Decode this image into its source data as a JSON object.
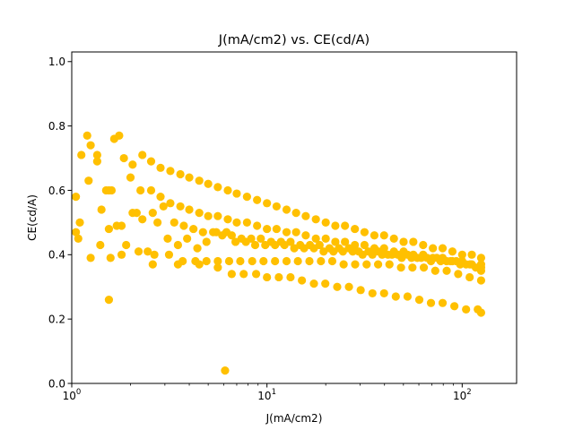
{
  "chart_data": {
    "type": "scatter",
    "title": "J(mA/cm2) vs. CE(cd/A)",
    "xlabel": "J(mA/cm2)",
    "ylabel": "CE(cd/A)",
    "xscale": "log",
    "xlim": [
      1,
      190
    ],
    "ylim": [
      0.0,
      1.03
    ],
    "x_ticks": [
      {
        "value": 1,
        "label": "10",
        "sup": "0"
      },
      {
        "value": 10,
        "label": "10",
        "sup": "1"
      },
      {
        "value": 100,
        "label": "10",
        "sup": "2"
      }
    ],
    "y_ticks": [
      "0.0",
      "0.2",
      "0.4",
      "0.6",
      "0.8",
      "1.0"
    ],
    "grid": false,
    "legend": "none",
    "marker_color": "#FFC000",
    "series": [
      {
        "x": [
          1.05,
          1.08,
          1.12,
          1.22,
          1.35,
          1.5,
          1.65,
          1.85,
          2.05,
          2.3,
          2.55,
          2.85,
          3.2,
          3.6,
          4.0,
          4.5,
          5.0,
          5.6,
          6.3,
          7.0,
          7.9,
          8.9,
          10.0,
          11.2,
          12.6,
          14.1,
          15.8,
          17.8,
          20.0,
          22.4,
          25.1,
          28.2,
          31.6,
          35.5,
          39.8,
          44.7,
          50.1,
          56.2,
          63.1,
          70.8,
          79.4,
          89.1,
          100.0,
          112.0,
          125.0
        ],
        "y": [
          0.47,
          0.45,
          0.71,
          0.63,
          0.69,
          0.6,
          0.76,
          0.7,
          0.68,
          0.71,
          0.69,
          0.67,
          0.66,
          0.65,
          0.64,
          0.63,
          0.62,
          0.61,
          0.6,
          0.59,
          0.58,
          0.57,
          0.56,
          0.55,
          0.54,
          0.53,
          0.52,
          0.51,
          0.5,
          0.49,
          0.49,
          0.48,
          0.47,
          0.46,
          0.46,
          0.45,
          0.44,
          0.44,
          0.43,
          0.42,
          0.42,
          0.41,
          0.4,
          0.4,
          0.39
        ]
      },
      {
        "x": [
          1.05,
          1.2,
          1.35,
          1.55,
          1.75,
          2.0,
          2.25,
          2.55,
          2.85,
          3.2,
          3.6,
          4.0,
          4.5,
          5.0,
          5.6,
          6.3,
          7.0,
          7.9,
          8.9,
          10.0,
          11.2,
          12.6,
          14.1,
          15.8,
          17.8,
          20.0,
          22.4,
          25.1,
          28.2,
          31.6,
          35.5,
          39.8,
          44.7,
          50.1,
          56.2,
          63.1,
          70.8,
          79.4,
          89.1,
          100.0,
          112.0,
          125.0
        ],
        "y": [
          0.58,
          0.77,
          0.71,
          0.6,
          0.77,
          0.64,
          0.6,
          0.6,
          0.58,
          0.56,
          0.55,
          0.54,
          0.53,
          0.52,
          0.52,
          0.51,
          0.5,
          0.5,
          0.49,
          0.48,
          0.48,
          0.47,
          0.47,
          0.46,
          0.45,
          0.45,
          0.44,
          0.44,
          0.43,
          0.43,
          0.42,
          0.42,
          0.41,
          0.41,
          0.4,
          0.4,
          0.39,
          0.39,
          0.38,
          0.38,
          0.37,
          0.37
        ]
      },
      {
        "x": [
          1.1,
          1.25,
          1.42,
          1.6,
          1.8,
          2.05,
          2.3,
          2.6,
          2.95,
          3.35,
          3.75,
          4.2,
          4.7,
          5.3,
          5.9,
          6.6,
          7.4,
          8.3,
          9.3,
          10.5,
          11.8,
          13.2,
          14.8,
          16.6,
          18.6,
          20.9,
          23.4,
          26.3,
          29.5,
          33.1,
          37.2,
          41.7,
          46.8,
          52.5,
          58.9,
          66.1,
          74.1,
          83.2,
          93.3,
          104.7,
          117.5,
          125.0
        ],
        "y": [
          0.5,
          0.74,
          0.54,
          0.6,
          0.49,
          0.53,
          0.51,
          0.53,
          0.55,
          0.5,
          0.49,
          0.48,
          0.47,
          0.47,
          0.46,
          0.46,
          0.45,
          0.45,
          0.45,
          0.44,
          0.44,
          0.44,
          0.43,
          0.43,
          0.43,
          0.42,
          0.42,
          0.42,
          0.41,
          0.41,
          0.41,
          0.4,
          0.4,
          0.4,
          0.39,
          0.39,
          0.39,
          0.38,
          0.38,
          0.37,
          0.36,
          0.35
        ]
      },
      {
        "x": [
          1.4,
          1.55,
          1.7,
          1.9,
          2.15,
          2.45,
          2.75,
          3.1,
          3.5,
          3.9,
          4.4,
          4.9,
          5.5,
          6.2,
          6.9,
          7.8,
          8.7,
          9.8,
          11.0,
          12.3,
          13.8,
          15.5,
          17.4,
          19.5,
          21.9,
          24.5,
          27.5,
          30.9,
          34.7,
          38.9,
          43.7,
          49.0,
          55.0,
          61.7,
          69.2,
          77.6,
          87.1,
          97.7,
          109.6,
          125.0
        ],
        "y": [
          0.43,
          0.48,
          0.49,
          0.43,
          0.53,
          0.41,
          0.5,
          0.45,
          0.43,
          0.45,
          0.42,
          0.44,
          0.47,
          0.47,
          0.44,
          0.44,
          0.43,
          0.43,
          0.43,
          0.43,
          0.42,
          0.42,
          0.42,
          0.41,
          0.41,
          0.41,
          0.41,
          0.4,
          0.4,
          0.4,
          0.4,
          0.39,
          0.39,
          0.39,
          0.38,
          0.38,
          0.38,
          0.37,
          0.37,
          0.36
        ]
      },
      {
        "x": [
          1.25,
          1.58,
          1.8,
          2.2,
          2.65,
          3.15,
          3.7,
          4.3,
          4.9,
          5.6,
          6.4,
          7.3,
          8.4,
          9.6,
          11.0,
          12.6,
          14.4,
          16.5,
          18.9,
          21.6,
          24.7,
          28.3,
          32.4,
          37.1,
          42.4,
          48.6,
          55.6,
          63.6,
          72.8,
          83.3,
          95.4,
          109.2,
          125.0
        ],
        "y": [
          0.39,
          0.39,
          0.4,
          0.41,
          0.4,
          0.4,
          0.38,
          0.38,
          0.38,
          0.38,
          0.38,
          0.38,
          0.38,
          0.38,
          0.38,
          0.38,
          0.38,
          0.38,
          0.38,
          0.38,
          0.37,
          0.37,
          0.37,
          0.37,
          0.37,
          0.36,
          0.36,
          0.36,
          0.35,
          0.35,
          0.34,
          0.33,
          0.32
        ]
      },
      {
        "x": [
          2.6,
          3.5,
          4.5,
          5.6,
          6.6,
          7.6,
          8.8,
          10.0,
          11.5,
          13.2,
          15.1,
          17.4,
          19.9,
          22.9,
          26.3,
          30.2,
          34.7,
          39.8,
          45.7,
          52.5,
          60.3,
          69.2,
          79.4,
          91.2,
          104.7,
          120.2,
          125.0
        ],
        "y": [
          0.37,
          0.37,
          0.37,
          0.36,
          0.34,
          0.34,
          0.34,
          0.33,
          0.33,
          0.33,
          0.32,
          0.31,
          0.31,
          0.3,
          0.3,
          0.29,
          0.28,
          0.28,
          0.27,
          0.27,
          0.26,
          0.25,
          0.25,
          0.24,
          0.23,
          0.23,
          0.22
        ]
      },
      {
        "x": [
          1.55,
          6.1
        ],
        "y": [
          0.26,
          0.04
        ]
      }
    ]
  }
}
